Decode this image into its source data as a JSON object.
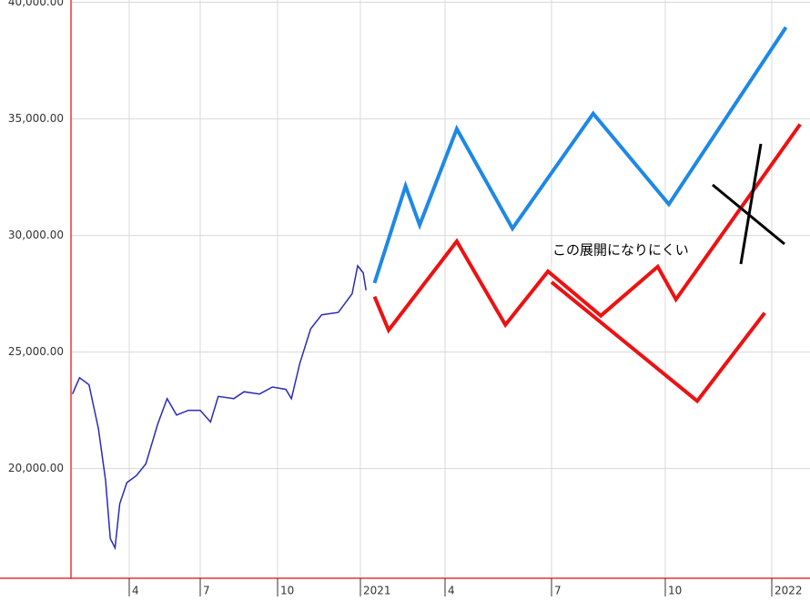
{
  "chart_data": {
    "type": "line",
    "annotation": "この展開になりにくい",
    "ylim": [
      15300,
      40100
    ],
    "yticks": [
      {
        "value": 20000,
        "label": "20,000.00"
      },
      {
        "value": 25000,
        "label": "25,000.00"
      },
      {
        "value": 30000,
        "label": "30,000.00"
      },
      {
        "value": 35000,
        "label": "35,000.00"
      },
      {
        "value": 40000,
        "label": "40,000.00"
      }
    ],
    "xlim": [
      1.5,
      26.1
    ],
    "xticks": [
      4,
      7,
      10,
      {
        "value": 13,
        "label": "2021"
      },
      {
        "value": 16,
        "label": "4"
      },
      {
        "value": 19,
        "label": "7"
      },
      {
        "value": 22,
        "label": "10"
      },
      {
        "value": 25,
        "label": "2022"
      }
    ],
    "grid": true,
    "series": [
      {
        "color": "#2a2ab8",
        "x": [
          1.6,
          1.9,
          2.3,
          2.7,
          3.0,
          3.2,
          3.4,
          3.6,
          3.9,
          4.3,
          4.7,
          5.2,
          5.6,
          6.0,
          6.5,
          7.0,
          7.4,
          7.7,
          8.3,
          8.7,
          9.3,
          9.8,
          10.3,
          10.5,
          10.8,
          11.2,
          11.6,
          12.2,
          12.7,
          12.9,
          13.1,
          13.2
        ],
        "values": [
          23200,
          23900,
          23600,
          21700,
          19500,
          17000,
          16600,
          18500,
          19400,
          19700,
          20200,
          21900,
          23000,
          22300,
          22500,
          22500,
          22000,
          23100,
          23000,
          23300,
          23200,
          23500,
          23400,
          23000,
          24500,
          26000,
          26600,
          26700,
          27500,
          28700,
          28400,
          27650
        ]
      },
      {
        "color": "#1e88e5",
        "x": [
          13.5,
          14.6,
          15.1,
          16.33,
          17.9,
          20.1,
          22.1,
          25.4
        ],
        "values": [
          27960,
          32120,
          30450,
          34570,
          30300,
          35230,
          31340,
          38930
        ]
      },
      {
        "color": "#ee1111",
        "x": [
          13.5,
          14.0,
          16.33,
          17.7,
          18.9,
          20.3,
          21.8,
          22.3,
          25.8
        ],
        "values": [
          27380,
          25940,
          29750,
          26170,
          28460,
          26560,
          28660,
          27260,
          34770
        ]
      },
      {
        "color": "#ee1111",
        "x": [
          19.0,
          22.9,
          24.8
        ],
        "values": [
          28000,
          22900,
          26680
        ]
      }
    ]
  }
}
